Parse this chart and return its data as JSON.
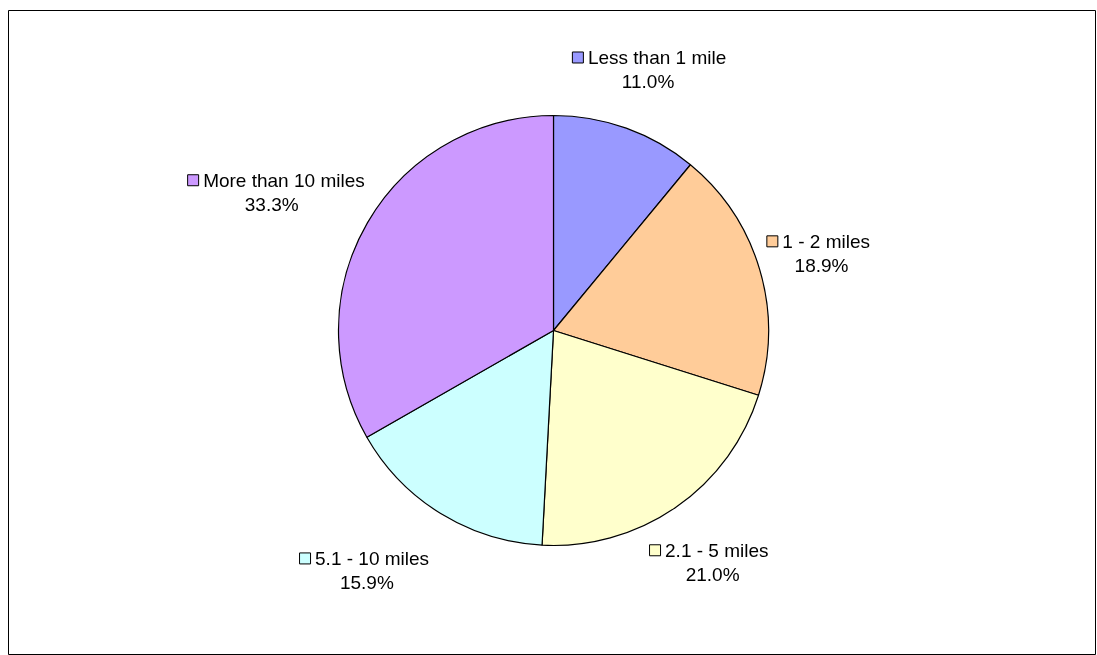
{
  "chart_data": {
    "type": "pie",
    "categories": [
      "Less than 1 mile",
      "1 - 2 miles",
      "2.1 - 5 miles",
      "5.1 - 10 miles",
      "More than 10 miles"
    ],
    "values": [
      11.0,
      18.9,
      21.0,
      15.9,
      33.3
    ],
    "colors": [
      "#9999ff",
      "#ffcc99",
      "#ffffcc",
      "#ccffff",
      "#cc99ff"
    ],
    "value_labels": [
      "11.0%",
      "18.9%",
      "21.0%",
      "15.9%",
      "33.3%"
    ],
    "legend": true
  }
}
